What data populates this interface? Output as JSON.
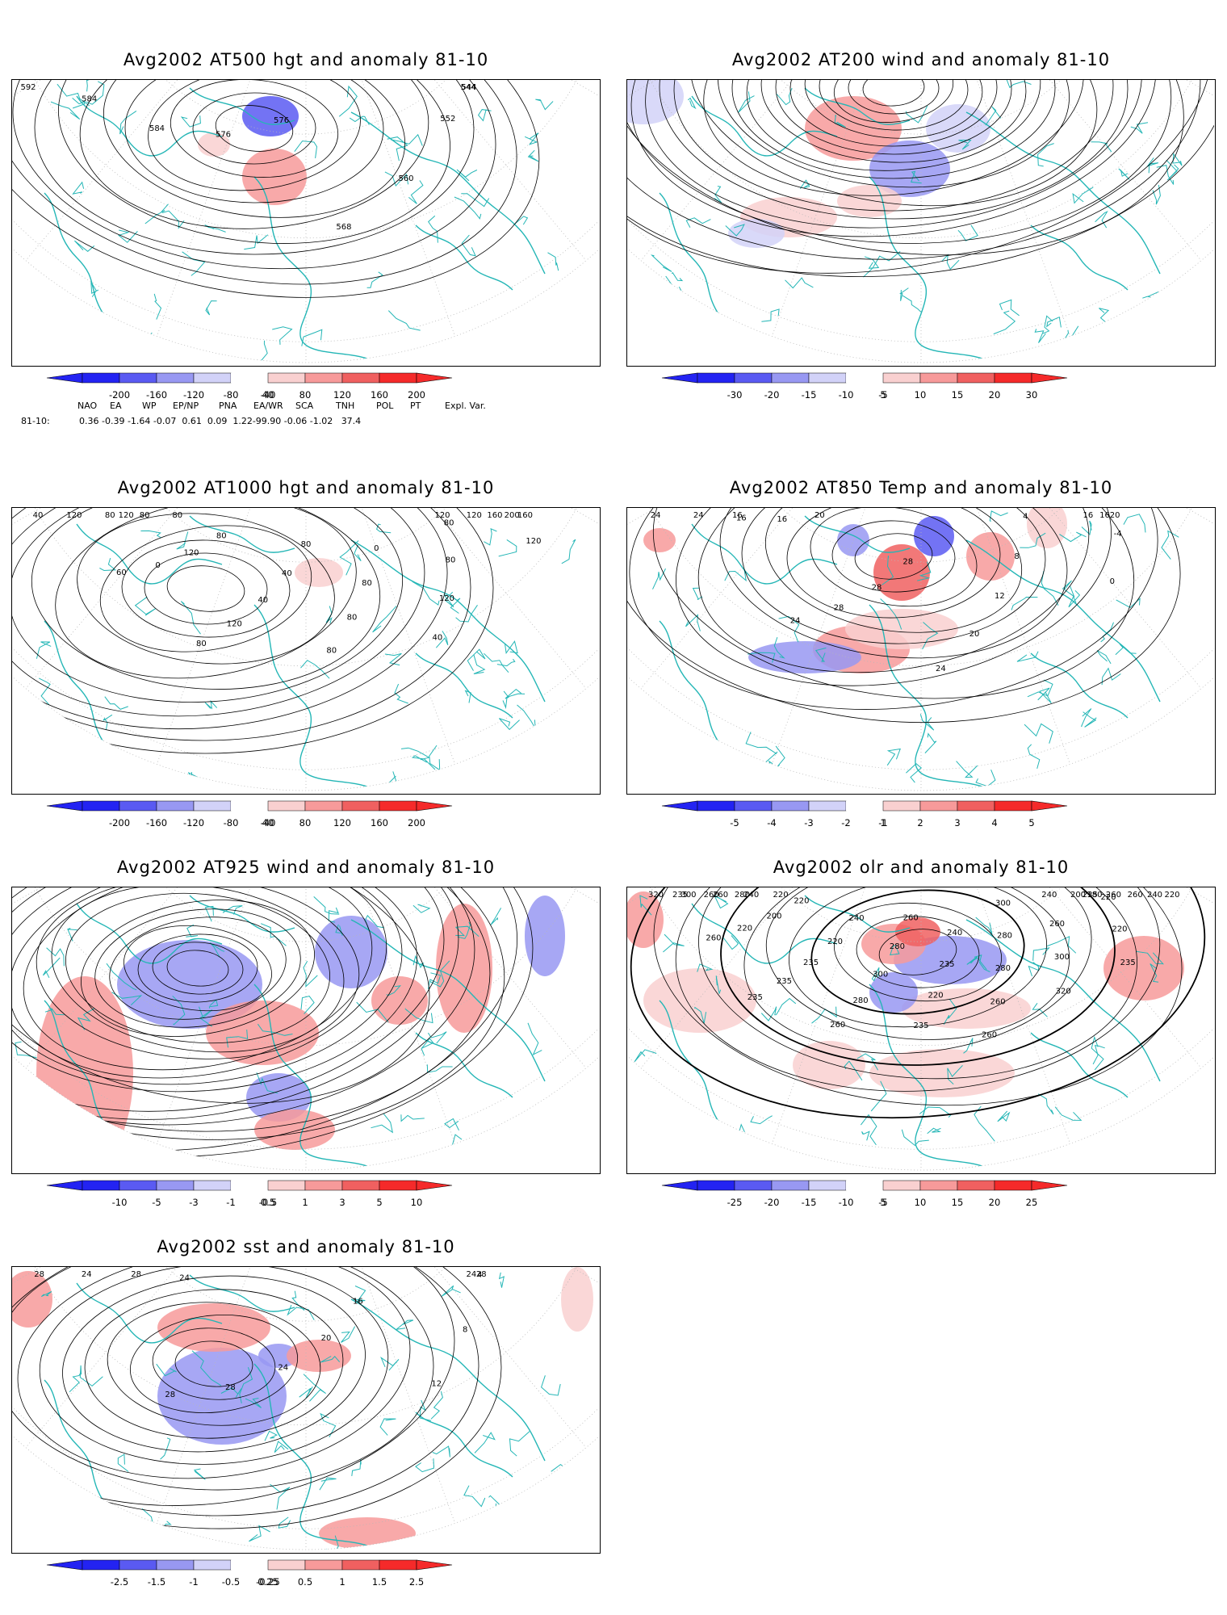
{
  "colors": {
    "coast": "#24b6b6",
    "contour": "#000000",
    "grid": "#b8b8b8",
    "scale": [
      "#2323f2",
      "#5a5af2",
      "#9898f2",
      "#d2d2f8",
      "#ffffff",
      "#f9d0d0",
      "#f79a9a",
      "#f06060",
      "#f52a2a"
    ]
  },
  "panels": [
    {
      "id": "at500",
      "title": "Avg2002 AT500 hgt and anomaly 81-10",
      "scale_labels": [
        "-200",
        "-160",
        "-120",
        "-80",
        "-40",
        "40",
        "80",
        "120",
        "160",
        "200"
      ],
      "contour_labels": [
        "544",
        "544",
        "552",
        "560",
        "568",
        "576",
        "576",
        "584",
        "584",
        "592"
      ]
    },
    {
      "id": "at200",
      "title": "Avg2002 AT200 wind and anomaly 81-10",
      "scale_labels": [
        "-30",
        "-20",
        "-15",
        "-10",
        "-5",
        "5",
        "10",
        "15",
        "20",
        "30"
      ],
      "contour_labels": []
    },
    {
      "id": "at1000",
      "title": "Avg2002 AT1000 hgt and anomaly 81-10",
      "scale_labels": [
        "-200",
        "-160",
        "-120",
        "-80",
        "-40",
        "40",
        "80",
        "120",
        "160",
        "200"
      ],
      "contour_labels": [
        "120",
        "160",
        "200",
        "160",
        "120",
        "120",
        "80",
        "80",
        "120",
        "40",
        "0",
        "80",
        "80",
        "80",
        "80",
        "40",
        "40",
        "120",
        "80",
        "80",
        "120",
        "0",
        "60",
        "80",
        "80",
        "80",
        "120",
        "40",
        "120"
      ]
    },
    {
      "id": "at850",
      "title": "Avg2002 AT850 Temp and anomaly 81-10",
      "scale_labels": [
        "-5",
        "-4",
        "-3",
        "-2",
        "-1",
        "1",
        "2",
        "3",
        "4",
        "5"
      ],
      "contour_labels": [
        "16",
        "16",
        "20",
        "-4",
        "0",
        "4",
        "8",
        "12",
        "20",
        "24",
        "28",
        "28",
        "28",
        "24",
        "20",
        "16",
        "16",
        "24",
        "24",
        "16"
      ]
    },
    {
      "id": "at925",
      "title": "Avg2002 AT925 wind and anomaly 81-10",
      "scale_labels": [
        "-10",
        "-5",
        "-3",
        "-1",
        "-0.5",
        "0.5",
        "1",
        "3",
        "5",
        "10"
      ],
      "contour_labels": []
    },
    {
      "id": "olr",
      "title": "Avg2002 olr and anomaly 81-10",
      "scale_labels": [
        "-25",
        "-20",
        "-15",
        "-10",
        "-5",
        "5",
        "10",
        "15",
        "20",
        "25"
      ],
      "contour_labels": [
        "235",
        "260",
        "260",
        "240",
        "220",
        "200",
        "180",
        "220",
        "220",
        "235",
        "240",
        "260",
        "300",
        "320",
        "300",
        "280",
        "280",
        "260",
        "260",
        "240",
        "235",
        "220",
        "235",
        "260",
        "280",
        "300",
        "280",
        "260",
        "240",
        "220",
        "235",
        "235",
        "235",
        "220",
        "200",
        "220",
        "260",
        "220",
        "240",
        "260",
        "300",
        "320",
        "280",
        "260",
        "235"
      ]
    },
    {
      "id": "sst",
      "title": "Avg2002 sst and anomaly 81-10",
      "scale_labels": [
        "-2.5",
        "-1.5",
        "-1",
        "-0.5",
        "-0.25",
        "0.25",
        "0.5",
        "1",
        "1.5",
        "2.5"
      ],
      "contour_labels": [
        "24",
        "28",
        "4",
        "8",
        "12",
        "16",
        "20",
        "24",
        "28",
        "28",
        "24",
        "28",
        "24",
        "28"
      ]
    }
  ],
  "indices": {
    "headers": [
      "NAO",
      "EA",
      "WP",
      "EP/NP",
      "PNA",
      "EA/WR",
      "SCA",
      "TNH",
      "POL",
      "PT",
      "Expl. Var."
    ],
    "row_label": "81-10:",
    "values": "0.36 -0.39 -1.64 -0.07  0.61  0.09  1.22-99.90 -0.06 -1.02   37.4"
  }
}
